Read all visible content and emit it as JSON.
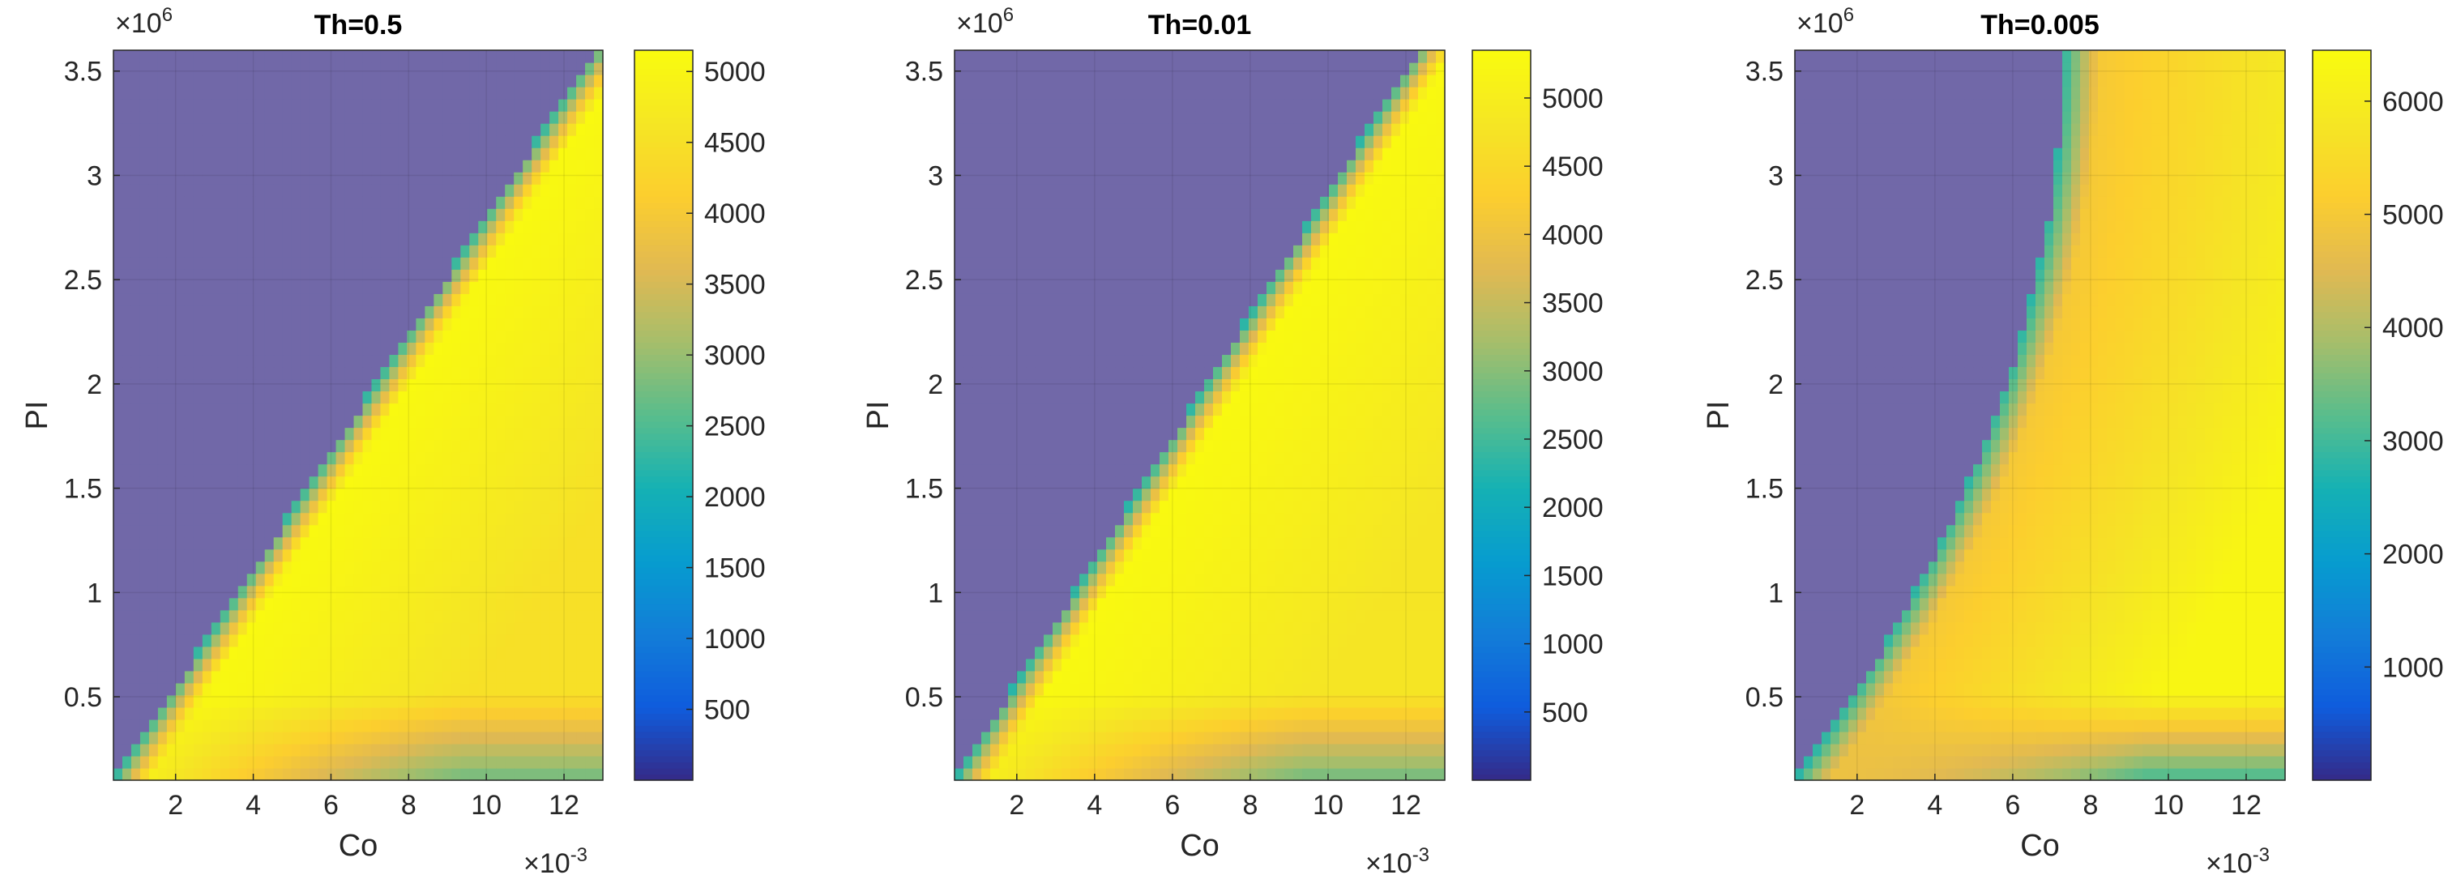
{
  "chart_data": [
    {
      "type": "heatmap",
      "title": "Th=0.5",
      "xlabel": "Co",
      "ylabel": "PI",
      "x_multiplier": "×10",
      "x_multiplier_exp": "-3",
      "y_multiplier": "×10",
      "y_multiplier_exp": "6",
      "xlim": [
        0.4,
        13.0
      ],
      "ylim": [
        0.1,
        3.6
      ],
      "xticks": [
        2,
        4,
        6,
        8,
        10,
        12
      ],
      "yticks": [
        0.5,
        1,
        1.5,
        2,
        2.5,
        3,
        3.5
      ],
      "colorbar_range": [
        0,
        5150
      ],
      "colorbar_ticks": [
        500,
        1000,
        1500,
        2000,
        2500,
        3000,
        3500,
        4000,
        4500,
        5000
      ],
      "masked_color": "#7168A8",
      "boundary_slope_co_per_pi": 3.55,
      "boundary_curvature": 0.0,
      "edge_value": 2300,
      "interior_peak_value": 5100,
      "far_value": 4500,
      "low_pi_band_value": 2700
    },
    {
      "type": "heatmap",
      "title": "Th=0.01",
      "xlabel": "Co",
      "ylabel": "PI",
      "x_multiplier": "×10",
      "x_multiplier_exp": "-3",
      "y_multiplier": "×10",
      "y_multiplier_exp": "6",
      "xlim": [
        0.4,
        13.0
      ],
      "ylim": [
        0.1,
        3.6
      ],
      "xticks": [
        2,
        4,
        6,
        8,
        10,
        12
      ],
      "yticks": [
        0.5,
        1,
        1.5,
        2,
        2.5,
        3,
        3.5
      ],
      "colorbar_range": [
        0,
        5350
      ],
      "colorbar_ticks": [
        500,
        1000,
        1500,
        2000,
        2500,
        3000,
        3500,
        4000,
        4500,
        5000
      ],
      "masked_color": "#7168A8",
      "boundary_slope_co_per_pi": 3.4,
      "boundary_curvature": 0.0,
      "edge_value": 2300,
      "interior_peak_value": 5300,
      "far_value": 4800,
      "low_pi_band_value": 2800
    },
    {
      "type": "heatmap",
      "title": "Th=0.005",
      "xlabel": "Co",
      "ylabel": "PI",
      "x_multiplier": "×10",
      "x_multiplier_exp": "-3",
      "y_multiplier": "×10",
      "y_multiplier_exp": "6",
      "xlim": [
        0.4,
        13.0
      ],
      "ylim": [
        0.1,
        3.6
      ],
      "xticks": [
        2,
        4,
        6,
        8,
        10,
        12
      ],
      "yticks": [
        0.5,
        1,
        1.5,
        2,
        2.5,
        3,
        3.5
      ],
      "colorbar_range": [
        0,
        6450
      ],
      "colorbar_ticks": [
        1000,
        2000,
        3000,
        4000,
        5000,
        6000
      ],
      "masked_color": "#7168A8",
      "boundary_slope_co_per_pi": 3.9,
      "boundary_curvature": -0.55,
      "edge_value": 2800,
      "interior_peak_value": 5000,
      "far_value": 6300,
      "low_pi_band_value": 3000
    }
  ]
}
